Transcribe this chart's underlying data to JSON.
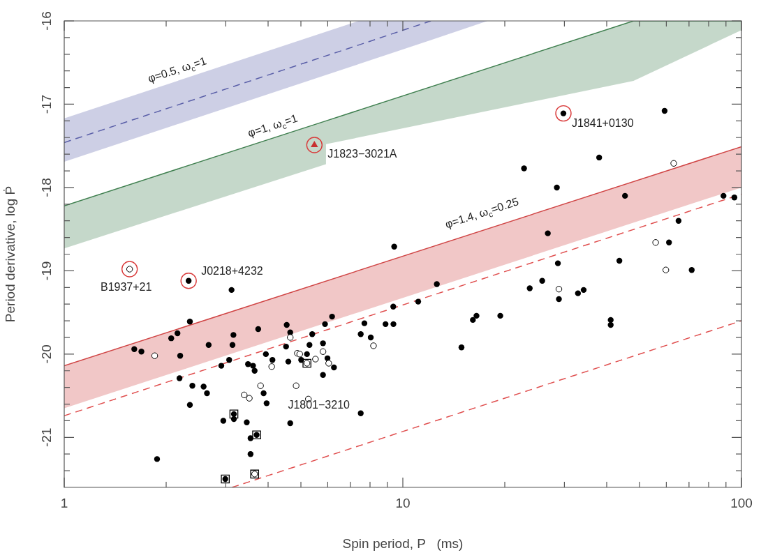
{
  "chart_data": {
    "type": "scatter",
    "xlabel": "Spin period, P   (ms)",
    "ylabel": "Period derivative, log Ṗ",
    "log": "x",
    "xlim": [
      1,
      100
    ],
    "ylim": [
      -21.6,
      -16
    ],
    "grid": false,
    "legend": false,
    "xticks": [
      1,
      {
        "value": 2,
        "label": null
      },
      {
        "value": 3,
        "label": null
      },
      {
        "value": 4,
        "label": null
      },
      {
        "value": 5,
        "label": null
      },
      {
        "value": 6,
        "label": null
      },
      {
        "value": 7,
        "label": null
      },
      {
        "value": 8,
        "label": null
      },
      {
        "value": 9,
        "label": null
      },
      10,
      {
        "value": 20,
        "label": null
      },
      {
        "value": 30,
        "label": null
      },
      {
        "value": 40,
        "label": null
      },
      {
        "value": 50,
        "label": null
      },
      {
        "value": 60,
        "label": null
      },
      {
        "value": 70,
        "label": null
      },
      {
        "value": 80,
        "label": null
      },
      {
        "value": 90,
        "label": null
      },
      100
    ],
    "yticks": [
      -21,
      -20,
      -19,
      -18,
      -17,
      -16,
      {
        "value": -21.4,
        "label": null
      },
      {
        "value": -21.2,
        "label": null
      },
      {
        "value": -20.8,
        "label": null
      },
      {
        "value": -20.6,
        "label": null
      },
      {
        "value": -20.4,
        "label": null
      },
      {
        "value": -20.2,
        "label": null
      },
      {
        "value": -19.8,
        "label": null
      },
      {
        "value": -19.6,
        "label": null
      },
      {
        "value": -19.4,
        "label": null
      },
      {
        "value": -19.2,
        "label": null
      },
      {
        "value": -18.8,
        "label": null
      },
      {
        "value": -18.6,
        "label": null
      },
      {
        "value": -18.4,
        "label": null
      },
      {
        "value": -18.2,
        "label": null
      },
      {
        "value": -17.8,
        "label": null
      },
      {
        "value": -17.6,
        "label": null
      },
      {
        "value": -17.4,
        "label": null
      },
      {
        "value": -17.2,
        "label": null
      },
      {
        "value": -16.8,
        "label": null
      },
      {
        "value": -16.6,
        "label": null
      },
      {
        "value": -16.4,
        "label": null
      },
      {
        "value": -16.2,
        "label": null
      }
    ],
    "annotations": [
      "φ=0.5, ω$_{c}$=1",
      "φ=1, ω$_{c}$=1",
      "φ=1.4, ω$_{c}$=0.25",
      {
        "text": "B1937+21",
        "x": 1.56,
        "y": -18.98
      },
      {
        "text": "J0218+4232",
        "x": 2.33,
        "y": -19.12
      },
      {
        "text": "J1823−3021A",
        "x": 5.48,
        "y": -17.49
      },
      {
        "text": "J1841+0130",
        "x": 29.8,
        "y": -17.11
      },
      {
        "text": "J1801−3210",
        "x": 7.51,
        "y": -20.71
      }
    ],
    "series": [
      {
        "type": "line",
        "color": "#5a5fa8",
        "line_style": "dashed",
        "x": [
          1,
          7.4,
          12.1,
          17.8
        ],
        "values": [
          -17.46,
          -16.29,
          -16,
          null
        ],
        "lower": [
          -17.69,
          -16.52,
          -16.23,
          -16
        ],
        "upper": [
          -17.17,
          -16,
          -16,
          -16
        ]
      },
      {
        "type": "line",
        "color": "#3f7f4f",
        "x": [
          1,
          5.93,
          5.93,
          48,
          100
        ],
        "values": [
          -18.22,
          -17.2,
          -17.2,
          -16,
          -16
        ],
        "lower": [
          -18.73,
          -17.72,
          -17.48,
          -16.72,
          -16.11
        ],
        "upper": [
          -18.22,
          -17.2,
          -17.2,
          -16,
          -16
        ]
      },
      {
        "type": "line",
        "color": "#d04545",
        "x": [
          1,
          100
        ],
        "values": [
          -20.14,
          -17.51
        ],
        "lower": [
          -20.65,
          -18.0
        ],
        "upper": [
          -20.14,
          -17.51
        ]
      },
      {
        "type": "line",
        "color": "#e05050",
        "line_style": "dashed",
        "x": [
          1,
          100
        ],
        "values": [
          -20.74,
          -18.08
        ]
      },
      {
        "type": "line",
        "color": "#e05050",
        "line_style": "dashed",
        "x": [
          3.13,
          100
        ],
        "values": [
          -21.6,
          -19.6
        ]
      },
      {
        "type": "scatter",
        "color": "#000000",
        "marker": "circle",
        "x": [
          2.33,
          3.12,
          2.35,
          1.61,
          1.69,
          2.07,
          2.16,
          2.2,
          2.67,
          3.16,
          3.14,
          3.74,
          4.54,
          4.65,
          5.4,
          5.89,
          6.18,
          4.52,
          5.3,
          5.81,
          5.21,
          3.94,
          4.12,
          4.59,
          5.01,
          5.99,
          6.26,
          5.81,
          3.07,
          2.91,
          3.49,
          3.61,
          3.65,
          2.19,
          2.39,
          2.58,
          2.64,
          2.35,
          3.88,
          3.96,
          2.95,
          3.17,
          3.17,
          3.46,
          4.65,
          3.7,
          3.55,
          3.55,
          1.88,
          2.99,
          7.51,
          7.51,
          7.7,
          8.04,
          71.3,
          23.7,
          25.8,
          28.9,
          32.9,
          34.2,
          41.1,
          41.1,
          12.6,
          11.1,
          9.37,
          8.89,
          9.38,
          16.1,
          16.5,
          19.4,
          14.9,
          29.8,
          59.3,
          22.8,
          38.0,
          28.5,
          45.3,
          9.43,
          26.8,
          88.5,
          95.3,
          65.2,
          61.1,
          43.6,
          28.7
        ],
        "values": [
          -19.12,
          -19.23,
          -19.61,
          -19.94,
          -19.97,
          -19.81,
          -19.75,
          -20.02,
          -19.89,
          -19.77,
          -19.89,
          -19.7,
          -19.65,
          -19.74,
          -19.76,
          -19.64,
          -19.55,
          -19.91,
          -19.89,
          -19.87,
          -20.0,
          -20.0,
          -20.07,
          -20.09,
          -20.07,
          -20.05,
          -20.16,
          -20.25,
          -20.07,
          -20.14,
          -20.12,
          -20.14,
          -20.2,
          -20.29,
          -20.38,
          -20.39,
          -20.47,
          -20.61,
          -20.47,
          -20.59,
          -20.8,
          -20.72,
          -20.78,
          -20.82,
          -20.83,
          -20.97,
          -21.01,
          -21.2,
          -21.26,
          -21.5,
          -20.71,
          -19.76,
          -19.63,
          -19.8,
          -18.99,
          -19.21,
          -19.12,
          -19.34,
          -19.27,
          -19.23,
          -19.59,
          -19.65,
          -19.16,
          -19.37,
          -19.43,
          -19.64,
          -19.64,
          -19.59,
          -19.54,
          -19.54,
          -19.92,
          -17.11,
          -17.08,
          -17.77,
          -17.64,
          -18.0,
          -18.1,
          -18.71,
          -18.55,
          -18.1,
          -18.12,
          -18.4,
          -18.66,
          -18.88,
          -18.91
        ]
      },
      {
        "type": "scatter",
        "color": "#ffffff",
        "marker": "circle",
        "x": [
          1.56,
          1.85,
          4.65,
          4.88,
          4.96,
          5.52,
          5.21,
          4.1,
          5.81,
          6.04,
          3.8,
          3.4,
          3.52,
          4.84,
          5.26,
          3.65,
          8.19,
          59.8,
          28.9,
          63.1,
          55.8
        ],
        "values": [
          -18.98,
          -20.02,
          -19.8,
          -19.99,
          -20.0,
          -20.06,
          -20.11,
          -20.15,
          -19.97,
          -20.11,
          -20.38,
          -20.49,
          -20.53,
          -20.38,
          -20.54,
          -21.44,
          -19.9,
          -18.99,
          -19.22,
          -17.71,
          -18.66
        ]
      },
      {
        "type": "scatter",
        "color": "#000000",
        "marker": "square",
        "x": [
          3.17,
          3.7,
          2.99,
          3.65,
          5.21
        ],
        "values": [
          -20.72,
          -20.97,
          -21.5,
          -21.44,
          -20.11
        ]
      },
      {
        "type": "scatter",
        "color": "#d93a3a",
        "marker": "circle",
        "x": [
          1.56,
          2.33,
          5.48,
          29.8
        ],
        "values": [
          -18.98,
          -19.12,
          -17.49,
          -17.11
        ]
      },
      {
        "type": "scatter",
        "color": "#c83030",
        "marker": "triangle",
        "x": [
          5.48
        ],
        "values": [
          -17.49
        ]
      }
    ]
  }
}
